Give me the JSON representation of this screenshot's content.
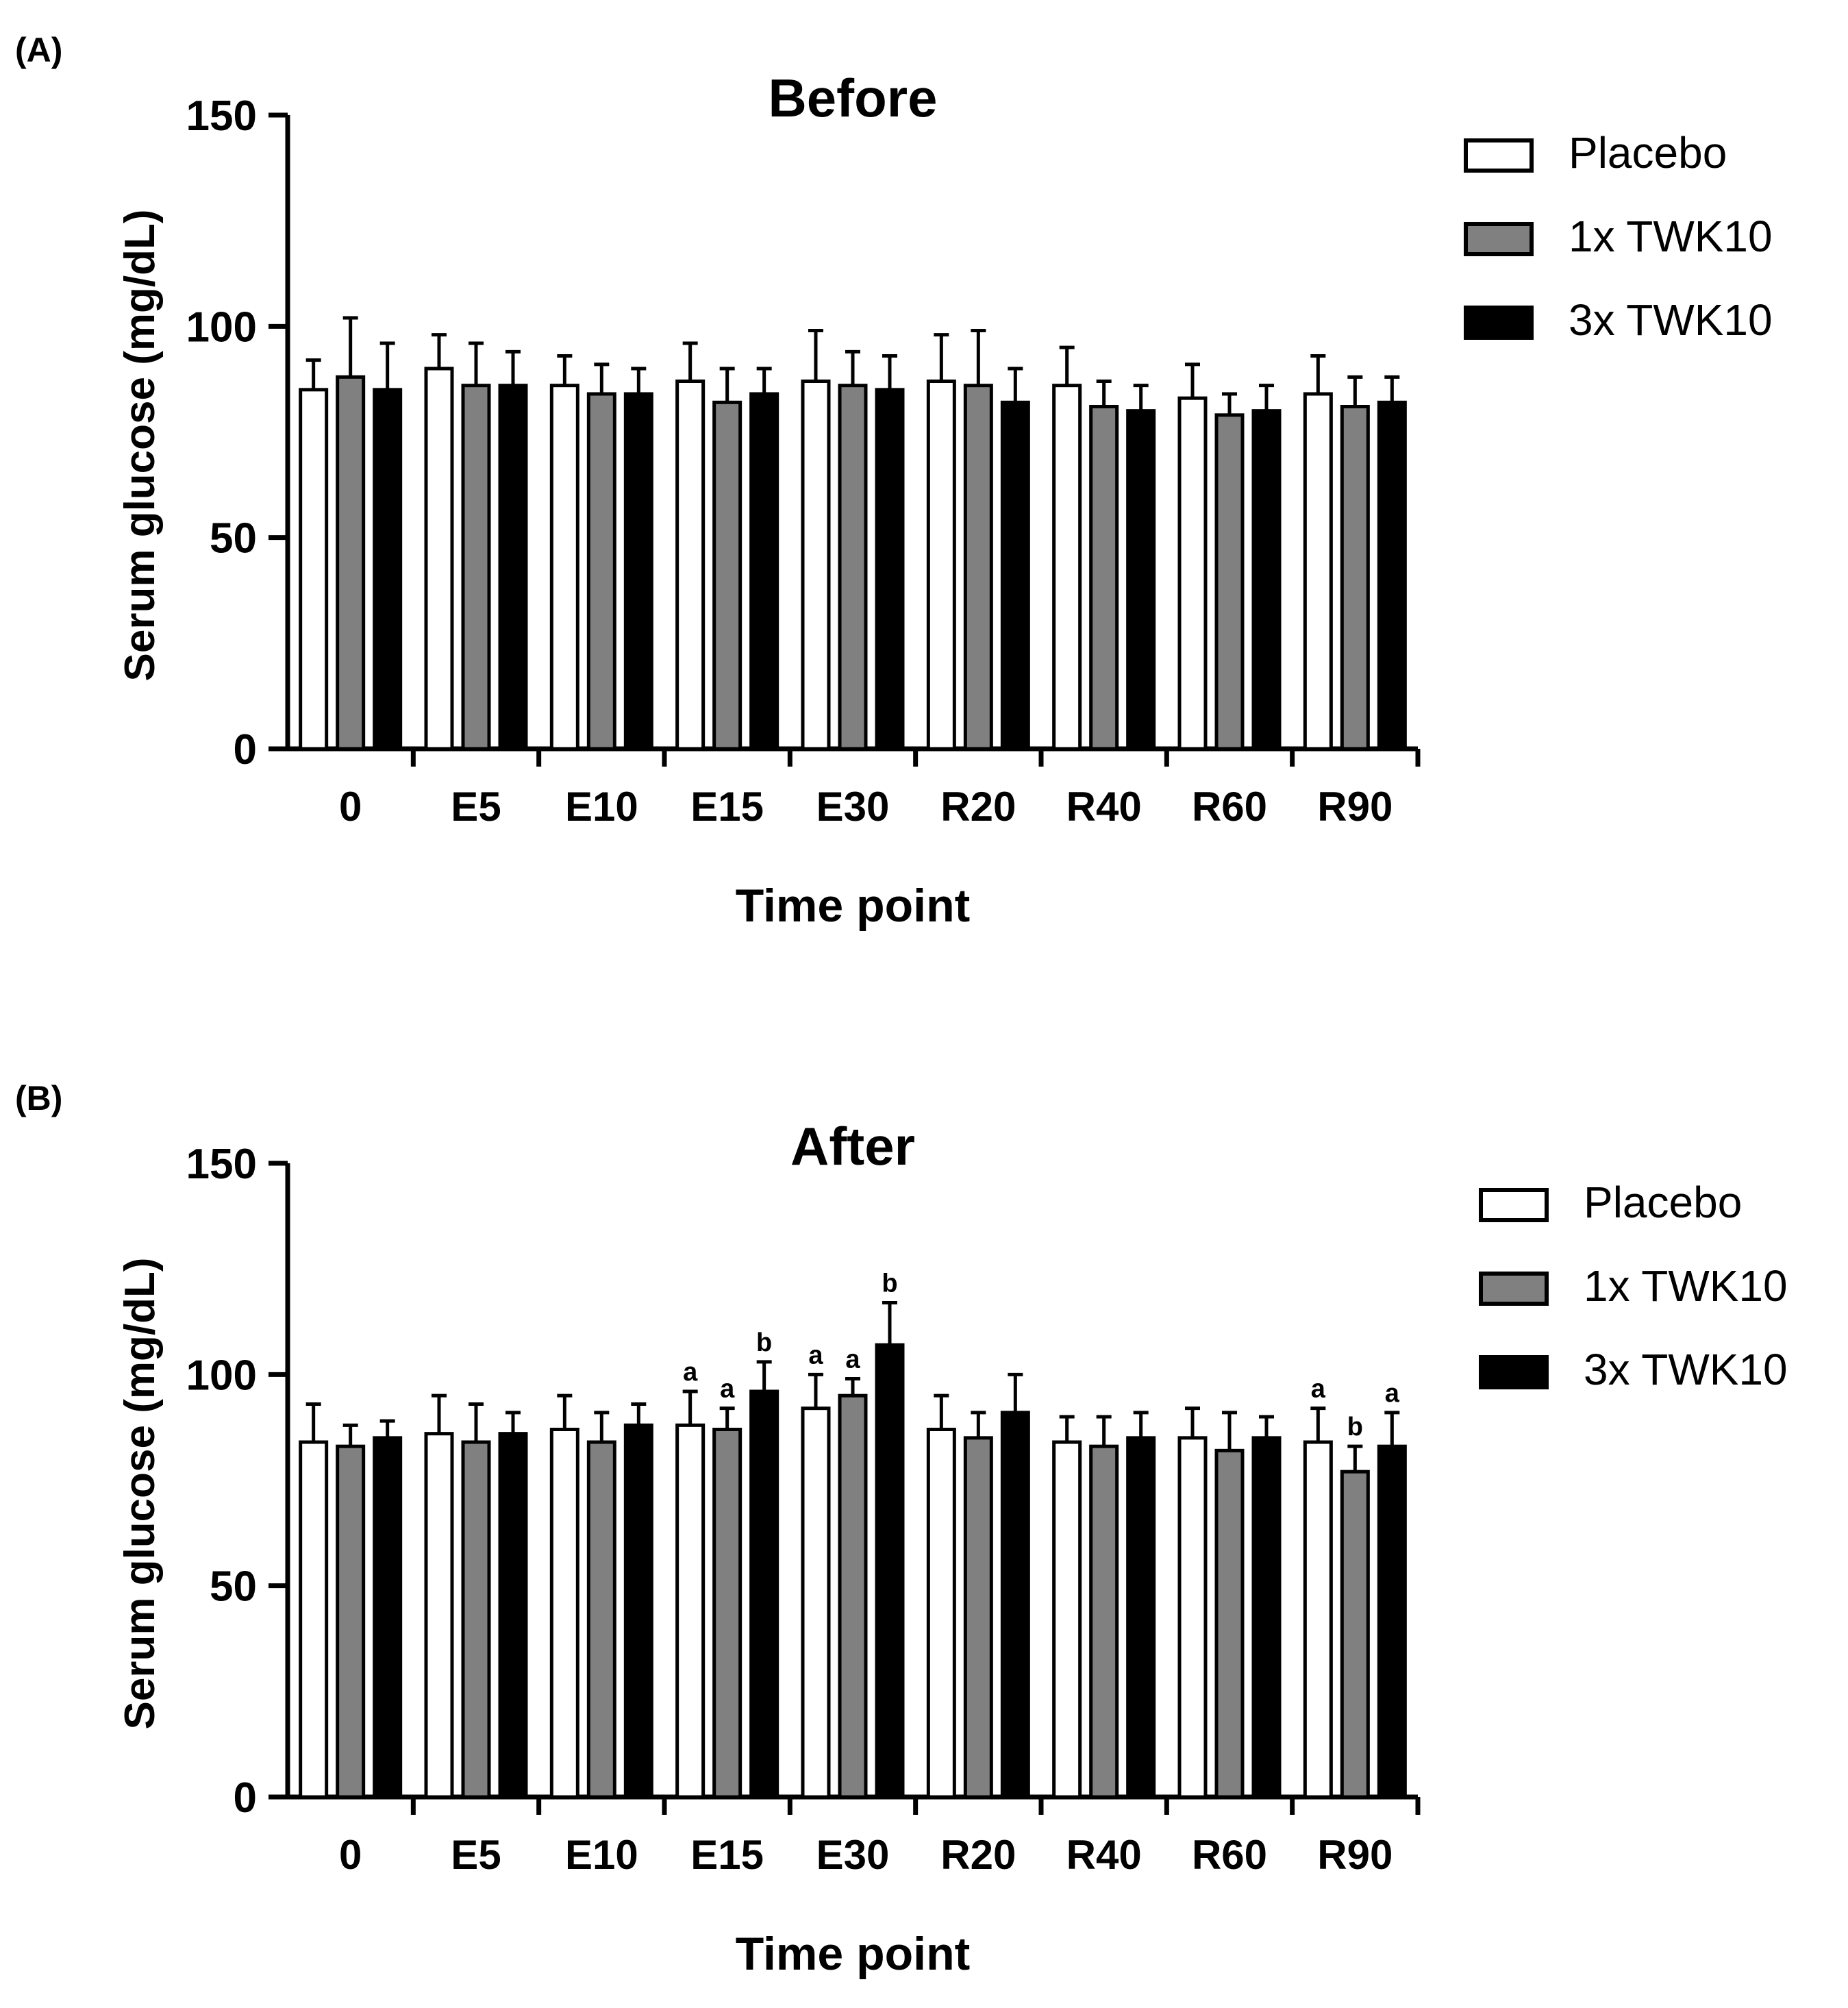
{
  "colors": {
    "placebo": "#ffffff",
    "tw1x": "#808080",
    "tw3x": "#000000",
    "stroke": "#000000"
  },
  "chart_data": [
    {
      "type": "bar",
      "panel_label": "(A)",
      "title": "Before",
      "xlabel": "Time point",
      "ylabel": "Serum glucose (mg/dL)",
      "ylim": [
        0,
        150
      ],
      "yticks": [
        "0",
        "50",
        "100",
        "150"
      ],
      "categories": [
        "0",
        "E5",
        "E10",
        "E15",
        "E30",
        "R20",
        "R40",
        "R60",
        "R90"
      ],
      "legend_position": "right",
      "series": [
        {
          "name": "Placebo",
          "color": "#ffffff",
          "values": [
            85,
            90,
            86,
            87,
            87,
            87,
            86,
            83,
            84
          ],
          "errors": [
            7,
            8,
            7,
            9,
            12,
            11,
            9,
            8,
            9
          ],
          "labels": [
            "",
            "",
            "",
            "",
            "",
            "",
            "",
            "",
            ""
          ]
        },
        {
          "name": "1x TWK10",
          "color": "#808080",
          "values": [
            88,
            86,
            84,
            82,
            86,
            86,
            81,
            79,
            81
          ],
          "errors": [
            14,
            10,
            7,
            8,
            8,
            13,
            6,
            5,
            7
          ],
          "labels": [
            "",
            "",
            "",
            "",
            "",
            "",
            "",
            "",
            ""
          ]
        },
        {
          "name": "3x TWK10",
          "color": "#000000",
          "values": [
            85,
            86,
            84,
            84,
            85,
            82,
            80,
            80,
            82
          ],
          "errors": [
            11,
            8,
            6,
            6,
            8,
            8,
            6,
            6,
            6
          ],
          "labels": [
            "",
            "",
            "",
            "",
            "",
            "",
            "",
            "",
            ""
          ]
        }
      ]
    },
    {
      "type": "bar",
      "panel_label": "(B)",
      "title": "After",
      "xlabel": "Time point",
      "ylabel": "Serum glucose (mg/dL)",
      "ylim": [
        0,
        150
      ],
      "yticks": [
        "0",
        "50",
        "100",
        "150"
      ],
      "categories": [
        "0",
        "E5",
        "E10",
        "E15",
        "E30",
        "R20",
        "R40",
        "R60",
        "R90"
      ],
      "legend_position": "right",
      "series": [
        {
          "name": "Placebo",
          "color": "#ffffff",
          "values": [
            84,
            86,
            87,
            88,
            92,
            87,
            84,
            85,
            84
          ],
          "errors": [
            9,
            9,
            8,
            8,
            8,
            8,
            6,
            7,
            8
          ],
          "labels": [
            "",
            "",
            "",
            "a",
            "a",
            "",
            "",
            "",
            "a"
          ]
        },
        {
          "name": "1x TWK10",
          "color": "#808080",
          "values": [
            83,
            84,
            84,
            87,
            95,
            85,
            83,
            82,
            77
          ],
          "errors": [
            5,
            9,
            7,
            5,
            4,
            6,
            7,
            9,
            6
          ],
          "labels": [
            "",
            "",
            "",
            "a",
            "a",
            "",
            "",
            "",
            "b"
          ]
        },
        {
          "name": "3x TWK10",
          "color": "#000000",
          "values": [
            85,
            86,
            88,
            96,
            107,
            91,
            85,
            85,
            83
          ],
          "errors": [
            4,
            5,
            5,
            7,
            10,
            9,
            6,
            5,
            8
          ],
          "labels": [
            "",
            "",
            "",
            "b",
            "b",
            "",
            "",
            "",
            "a"
          ]
        }
      ]
    }
  ]
}
